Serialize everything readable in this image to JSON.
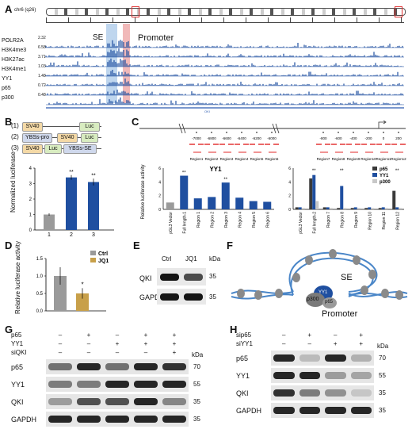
{
  "panel_labels": {
    "A": "A",
    "B": "B",
    "C": "C",
    "D": "D",
    "E": "E",
    "F": "F",
    "G": "G",
    "H": "H"
  },
  "panelA": {
    "chrom": "chr6 (q26)",
    "se_label": "SE",
    "promoter_label": "Promoter",
    "tracks": [
      {
        "name": "POLR2A",
        "max": "2.32"
      },
      {
        "name": "H3K4me3",
        "max": "6.58"
      },
      {
        "name": "H3K27ac",
        "max": "3.71"
      },
      {
        "name": "H3K4me1",
        "max": "1.03"
      },
      {
        "name": "YY1",
        "max": "1.48"
      },
      {
        "name": "p65",
        "max": "0.72"
      },
      {
        "name": "p300",
        "max": "0.48"
      }
    ]
  },
  "panelB": {
    "constructs": [
      {
        "num": "(1)",
        "parts": [
          "SV40",
          "Luc"
        ]
      },
      {
        "num": "(2)",
        "parts": [
          "YBSs-pro",
          "SV40",
          "Luc"
        ]
      },
      {
        "num": "(3)",
        "parts": [
          "SV40",
          "Luc",
          "YBSs-SE"
        ]
      }
    ],
    "ylabel": "Normalized luciferase",
    "stars": [
      "",
      "**",
      "**"
    ]
  },
  "panelC": {
    "regions_left": [
      "Region1",
      "Region2",
      "Region3",
      "Region4",
      "Region5",
      "Region6"
    ],
    "regions_right": [
      "Region7",
      "Region8",
      "Region9",
      "Region10",
      "Region11",
      "Region12"
    ],
    "coords_left": [
      "-7000",
      "-6800",
      "-6600",
      "-6400",
      "-6200",
      "-6000"
    ],
    "coords_right": [
      "-800",
      "-600",
      "-400",
      "-200",
      "0",
      "200"
    ],
    "left_title": "YY1",
    "ylabel": "Relative luciferase activity",
    "legend": [
      "p65",
      "YY1",
      "p300"
    ]
  },
  "panelD": {
    "ylabel": "Relative luciferase activity",
    "legend": [
      "Ctrl",
      "JQ1"
    ],
    "star": "*"
  },
  "panelE": {
    "cols": [
      "Ctrl",
      "JQ1"
    ],
    "kda": "kDa",
    "rows": [
      {
        "name": "QKI",
        "kda": "35"
      },
      {
        "name": "GAPDH",
        "kda": "35"
      }
    ]
  },
  "panelF": {
    "se": "SE",
    "promoter": "Promoter",
    "p300": "p300",
    "yy1": "YY1",
    "p65": "p65"
  },
  "panelG": {
    "conds": [
      {
        "name": "p65",
        "vals": [
          "–",
          "+",
          "–",
          "+",
          "+"
        ]
      },
      {
        "name": "YY1",
        "vals": [
          "–",
          "–",
          "+",
          "+",
          "+"
        ]
      },
      {
        "name": "siQKI",
        "vals": [
          "–",
          "–",
          "–",
          "–",
          "+"
        ]
      }
    ],
    "kda": "kDa",
    "rows": [
      {
        "name": "p65",
        "kda": "70"
      },
      {
        "name": "YY1",
        "kda": "55"
      },
      {
        "name": "QKI",
        "kda": "35"
      },
      {
        "name": "GAPDH",
        "kda": "35"
      }
    ]
  },
  "panelH": {
    "conds": [
      {
        "name": "sip65",
        "vals": [
          "–",
          "+",
          "–",
          "+"
        ]
      },
      {
        "name": "siYY1",
        "vals": [
          "–",
          "–",
          "+",
          "+"
        ]
      }
    ],
    "kda": "kDa",
    "rows": [
      {
        "name": "p65",
        "kda": "70"
      },
      {
        "name": "YY1",
        "kda": "55"
      },
      {
        "name": "QKI",
        "kda": "35"
      },
      {
        "name": "GAPDH",
        "kda": "35"
      }
    ]
  },
  "chart_data": [
    {
      "type": "bar",
      "panel": "B",
      "categories": [
        "1",
        "2",
        "3"
      ],
      "values": [
        1.0,
        3.4,
        3.1
      ],
      "errors": [
        0.08,
        0.15,
        0.22
      ],
      "ylabel": "Normalized luciferase",
      "ylim": [
        0,
        4
      ]
    },
    {
      "type": "bar",
      "panel": "C-left",
      "title": "YY1",
      "categories": [
        "pGL3 Vector",
        "Full length-1",
        "Region 1",
        "Region 2",
        "Region 3",
        "Region 4",
        "Region 5",
        "Region 6"
      ],
      "values": [
        1.0,
        4.9,
        1.6,
        1.8,
        3.9,
        1.7,
        1.2,
        1.1
      ],
      "ylim": [
        0,
        6
      ]
    },
    {
      "type": "bar",
      "panel": "C-right",
      "categories": [
        "pGL3 Vector",
        "Full length-2",
        "Region 7",
        "Region 8",
        "Region 9",
        "Region 10",
        "Region 11",
        "Region 12"
      ],
      "series": [
        {
          "name": "p65",
          "values": [
            0.3,
            4.5,
            0.3,
            0.2,
            0.2,
            0.2,
            0.2,
            2.7
          ]
        },
        {
          "name": "YY1",
          "values": [
            0.3,
            5.0,
            0.3,
            3.4,
            0.3,
            0.3,
            0.3,
            0.3
          ]
        },
        {
          "name": "p300",
          "values": [
            0.2,
            1.2,
            0.2,
            0.2,
            0.2,
            0.2,
            0.2,
            0.2
          ]
        }
      ],
      "ylim": [
        0,
        6
      ]
    },
    {
      "type": "bar",
      "panel": "D",
      "categories": [
        "Ctrl",
        "JQ1"
      ],
      "values": [
        1.0,
        0.5
      ],
      "errors": [
        0.25,
        0.15
      ],
      "ylabel": "Relative luciferase activity",
      "ylim": [
        0,
        1.5
      ]
    }
  ],
  "colors": {
    "blue": "#1f4fa0",
    "gray": "#9a9a9a",
    "gold": "#c8a04a",
    "dark": "#3a3a3a",
    "sehl": "#8ab4e0",
    "prhl": "#e88a8a"
  }
}
